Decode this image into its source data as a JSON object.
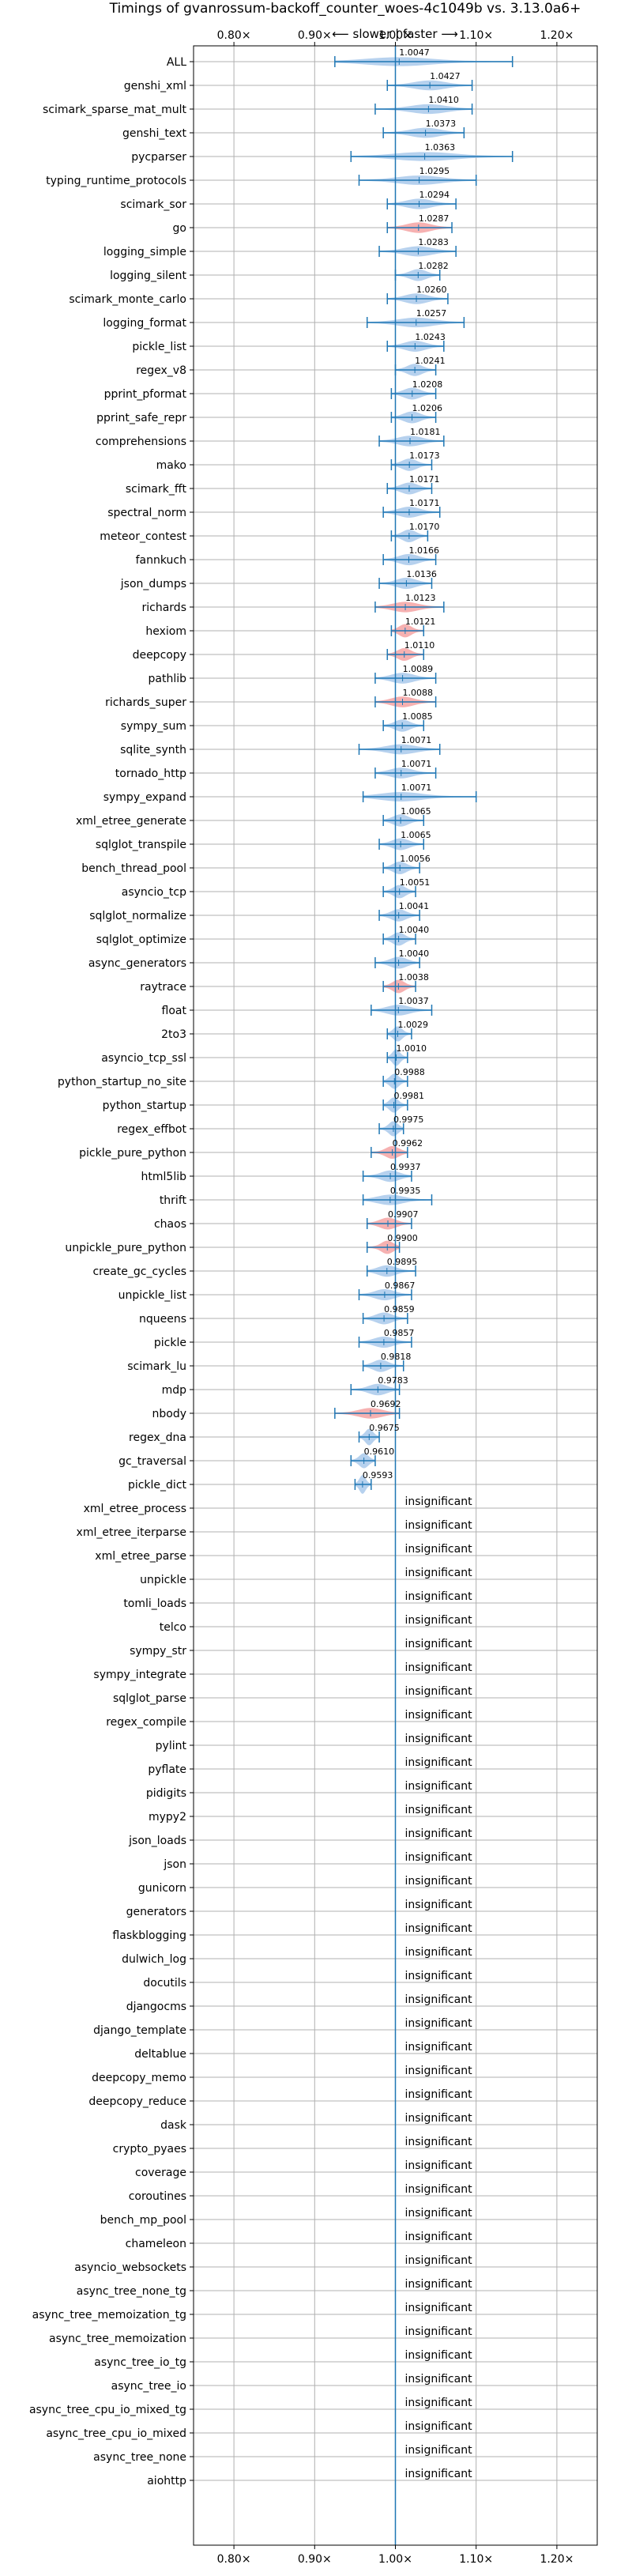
{
  "chart_data": {
    "type": "violin",
    "title": "Timings of gvanrossum-backoff_counter_woes-4c1049b vs. 3.13.0a6+",
    "direction_label": "⟵ slower | faster ⟶",
    "xlim": [
      0.75,
      1.25
    ],
    "xticks": [
      0.8,
      0.9,
      1.0,
      1.1,
      1.2
    ],
    "xtick_labels": [
      "0.80×",
      "0.90×",
      "1.00×",
      "1.10×",
      "1.20×"
    ],
    "reference_line": 1.0,
    "insignificant_label": "insignificant",
    "colors": {
      "faster": "#a9c9eb",
      "slower": "#f4a3a3",
      "errorbar": "#1f77b4",
      "grid": "#b0b0b0",
      "refline": "#1f77b4"
    },
    "benchmarks": [
      {
        "name": "ALL",
        "mean": 1.0047,
        "label": "1.0047",
        "lo": 0.925,
        "hi": 1.145
      },
      {
        "name": "genshi_xml",
        "mean": 1.0427,
        "label": "1.0427",
        "lo": 0.99,
        "hi": 1.095
      },
      {
        "name": "scimark_sparse_mat_mult",
        "mean": 1.041,
        "label": "1.0410",
        "lo": 0.975,
        "hi": 1.095
      },
      {
        "name": "genshi_text",
        "mean": 1.0373,
        "label": "1.0373",
        "lo": 0.985,
        "hi": 1.085
      },
      {
        "name": "pycparser",
        "mean": 1.0363,
        "label": "1.0363",
        "lo": 0.945,
        "hi": 1.145
      },
      {
        "name": "typing_runtime_protocols",
        "mean": 1.0295,
        "label": "1.0295",
        "lo": 0.955,
        "hi": 1.1
      },
      {
        "name": "scimark_sor",
        "mean": 1.0294,
        "label": "1.0294",
        "lo": 0.99,
        "hi": 1.075
      },
      {
        "name": "go",
        "mean": 1.0287,
        "label": "1.0287",
        "lo": 0.99,
        "hi": 1.07,
        "slower": true
      },
      {
        "name": "logging_simple",
        "mean": 1.0283,
        "label": "1.0283",
        "lo": 0.98,
        "hi": 1.075
      },
      {
        "name": "logging_silent",
        "mean": 1.0282,
        "label": "1.0282",
        "lo": 1.0,
        "hi": 1.055
      },
      {
        "name": "scimark_monte_carlo",
        "mean": 1.026,
        "label": "1.0260",
        "lo": 0.99,
        "hi": 1.065
      },
      {
        "name": "logging_format",
        "mean": 1.0257,
        "label": "1.0257",
        "lo": 0.965,
        "hi": 1.085
      },
      {
        "name": "pickle_list",
        "mean": 1.0243,
        "label": "1.0243",
        "lo": 0.99,
        "hi": 1.06
      },
      {
        "name": "regex_v8",
        "mean": 1.0241,
        "label": "1.0241",
        "lo": 1.0,
        "hi": 1.05
      },
      {
        "name": "pprint_pformat",
        "mean": 1.0208,
        "label": "1.0208",
        "lo": 0.995,
        "hi": 1.05
      },
      {
        "name": "pprint_safe_repr",
        "mean": 1.0206,
        "label": "1.0206",
        "lo": 0.995,
        "hi": 1.05
      },
      {
        "name": "comprehensions",
        "mean": 1.0181,
        "label": "1.0181",
        "lo": 0.98,
        "hi": 1.06
      },
      {
        "name": "mako",
        "mean": 1.0173,
        "label": "1.0173",
        "lo": 0.995,
        "hi": 1.045
      },
      {
        "name": "scimark_fft",
        "mean": 1.0171,
        "label": "1.0171",
        "lo": 0.99,
        "hi": 1.045
      },
      {
        "name": "spectral_norm",
        "mean": 1.0171,
        "label": "1.0171",
        "lo": 0.985,
        "hi": 1.055
      },
      {
        "name": "meteor_contest",
        "mean": 1.017,
        "label": "1.0170",
        "lo": 0.995,
        "hi": 1.04
      },
      {
        "name": "fannkuch",
        "mean": 1.0166,
        "label": "1.0166",
        "lo": 0.985,
        "hi": 1.05
      },
      {
        "name": "json_dumps",
        "mean": 1.0136,
        "label": "1.0136",
        "lo": 0.98,
        "hi": 1.045
      },
      {
        "name": "richards",
        "mean": 1.0123,
        "label": "1.0123",
        "lo": 0.975,
        "hi": 1.06,
        "slower": true
      },
      {
        "name": "hexiom",
        "mean": 1.0121,
        "label": "1.0121",
        "lo": 0.995,
        "hi": 1.035,
        "slower": true
      },
      {
        "name": "deepcopy",
        "mean": 1.011,
        "label": "1.0110",
        "lo": 0.99,
        "hi": 1.035,
        "slower": true
      },
      {
        "name": "pathlib",
        "mean": 1.0089,
        "label": "1.0089",
        "lo": 0.975,
        "hi": 1.05
      },
      {
        "name": "richards_super",
        "mean": 1.0088,
        "label": "1.0088",
        "lo": 0.975,
        "hi": 1.05,
        "slower": true
      },
      {
        "name": "sympy_sum",
        "mean": 1.0085,
        "label": "1.0085",
        "lo": 0.985,
        "hi": 1.035
      },
      {
        "name": "sqlite_synth",
        "mean": 1.0071,
        "label": "1.0071",
        "lo": 0.955,
        "hi": 1.055
      },
      {
        "name": "tornado_http",
        "mean": 1.0071,
        "label": "1.0071",
        "lo": 0.975,
        "hi": 1.05
      },
      {
        "name": "sympy_expand",
        "mean": 1.0071,
        "label": "1.0071",
        "lo": 0.96,
        "hi": 1.1
      },
      {
        "name": "xml_etree_generate",
        "mean": 1.0065,
        "label": "1.0065",
        "lo": 0.985,
        "hi": 1.035
      },
      {
        "name": "sqlglot_transpile",
        "mean": 1.0065,
        "label": "1.0065",
        "lo": 0.98,
        "hi": 1.035
      },
      {
        "name": "bench_thread_pool",
        "mean": 1.0056,
        "label": "1.0056",
        "lo": 0.985,
        "hi": 1.03
      },
      {
        "name": "asyncio_tcp",
        "mean": 1.0051,
        "label": "1.0051",
        "lo": 0.985,
        "hi": 1.025
      },
      {
        "name": "sqlglot_normalize",
        "mean": 1.0041,
        "label": "1.0041",
        "lo": 0.98,
        "hi": 1.03
      },
      {
        "name": "sqlglot_optimize",
        "mean": 1.004,
        "label": "1.0040",
        "lo": 0.985,
        "hi": 1.025
      },
      {
        "name": "async_generators",
        "mean": 1.004,
        "label": "1.0040",
        "lo": 0.975,
        "hi": 1.03
      },
      {
        "name": "raytrace",
        "mean": 1.0038,
        "label": "1.0038",
        "lo": 0.985,
        "hi": 1.025,
        "slower": true
      },
      {
        "name": "float",
        "mean": 1.0037,
        "label": "1.0037",
        "lo": 0.97,
        "hi": 1.045
      },
      {
        "name": "2to3",
        "mean": 1.0029,
        "label": "1.0029",
        "lo": 0.99,
        "hi": 1.02
      },
      {
        "name": "asyncio_tcp_ssl",
        "mean": 1.001,
        "label": "1.0010",
        "lo": 0.99,
        "hi": 1.015
      },
      {
        "name": "python_startup_no_site",
        "mean": 0.9988,
        "label": "0.9988",
        "lo": 0.985,
        "hi": 1.015
      },
      {
        "name": "python_startup",
        "mean": 0.9981,
        "label": "0.9981",
        "lo": 0.985,
        "hi": 1.015
      },
      {
        "name": "regex_effbot",
        "mean": 0.9975,
        "label": "0.9975",
        "lo": 0.98,
        "hi": 1.01
      },
      {
        "name": "pickle_pure_python",
        "mean": 0.9962,
        "label": "0.9962",
        "lo": 0.97,
        "hi": 1.015,
        "slower": true
      },
      {
        "name": "html5lib",
        "mean": 0.9937,
        "label": "0.9937",
        "lo": 0.96,
        "hi": 1.02
      },
      {
        "name": "thrift",
        "mean": 0.9935,
        "label": "0.9935",
        "lo": 0.96,
        "hi": 1.045
      },
      {
        "name": "chaos",
        "mean": 0.9907,
        "label": "0.9907",
        "lo": 0.965,
        "hi": 1.02,
        "slower": true
      },
      {
        "name": "unpickle_pure_python",
        "mean": 0.99,
        "label": "0.9900",
        "lo": 0.965,
        "hi": 1.005,
        "slower": true
      },
      {
        "name": "create_gc_cycles",
        "mean": 0.9895,
        "label": "0.9895",
        "lo": 0.965,
        "hi": 1.025
      },
      {
        "name": "unpickle_list",
        "mean": 0.9867,
        "label": "0.9867",
        "lo": 0.955,
        "hi": 1.02
      },
      {
        "name": "nqueens",
        "mean": 0.9859,
        "label": "0.9859",
        "lo": 0.96,
        "hi": 1.015
      },
      {
        "name": "pickle",
        "mean": 0.9857,
        "label": "0.9857",
        "lo": 0.955,
        "hi": 1.02
      },
      {
        "name": "scimark_lu",
        "mean": 0.9818,
        "label": "0.9818",
        "lo": 0.96,
        "hi": 1.01
      },
      {
        "name": "mdp",
        "mean": 0.9783,
        "label": "0.9783",
        "lo": 0.945,
        "hi": 1.005
      },
      {
        "name": "nbody",
        "mean": 0.9692,
        "label": "0.9692",
        "lo": 0.925,
        "hi": 1.005,
        "slower": true
      },
      {
        "name": "regex_dna",
        "mean": 0.9675,
        "label": "0.9675",
        "lo": 0.955,
        "hi": 0.98
      },
      {
        "name": "gc_traversal",
        "mean": 0.961,
        "label": "0.9610",
        "lo": 0.945,
        "hi": 0.975
      },
      {
        "name": "pickle_dict",
        "mean": 0.9593,
        "label": "0.9593",
        "lo": 0.95,
        "hi": 0.97
      },
      {
        "name": "xml_etree_process",
        "insignificant": true
      },
      {
        "name": "xml_etree_iterparse",
        "insignificant": true
      },
      {
        "name": "xml_etree_parse",
        "insignificant": true
      },
      {
        "name": "unpickle",
        "insignificant": true
      },
      {
        "name": "tomli_loads",
        "insignificant": true
      },
      {
        "name": "telco",
        "insignificant": true
      },
      {
        "name": "sympy_str",
        "insignificant": true
      },
      {
        "name": "sympy_integrate",
        "insignificant": true
      },
      {
        "name": "sqlglot_parse",
        "insignificant": true
      },
      {
        "name": "regex_compile",
        "insignificant": true
      },
      {
        "name": "pylint",
        "insignificant": true
      },
      {
        "name": "pyflate",
        "insignificant": true
      },
      {
        "name": "pidigits",
        "insignificant": true
      },
      {
        "name": "mypy2",
        "insignificant": true
      },
      {
        "name": "json_loads",
        "insignificant": true
      },
      {
        "name": "json",
        "insignificant": true
      },
      {
        "name": "gunicorn",
        "insignificant": true
      },
      {
        "name": "generators",
        "insignificant": true
      },
      {
        "name": "flaskblogging",
        "insignificant": true
      },
      {
        "name": "dulwich_log",
        "insignificant": true
      },
      {
        "name": "docutils",
        "insignificant": true
      },
      {
        "name": "djangocms",
        "insignificant": true
      },
      {
        "name": "django_template",
        "insignificant": true
      },
      {
        "name": "deltablue",
        "insignificant": true
      },
      {
        "name": "deepcopy_memo",
        "insignificant": true
      },
      {
        "name": "deepcopy_reduce",
        "insignificant": true
      },
      {
        "name": "dask",
        "insignificant": true
      },
      {
        "name": "crypto_pyaes",
        "insignificant": true
      },
      {
        "name": "coverage",
        "insignificant": true
      },
      {
        "name": "coroutines",
        "insignificant": true
      },
      {
        "name": "bench_mp_pool",
        "insignificant": true
      },
      {
        "name": "chameleon",
        "insignificant": true
      },
      {
        "name": "asyncio_websockets",
        "insignificant": true
      },
      {
        "name": "async_tree_none_tg",
        "insignificant": true
      },
      {
        "name": "async_tree_memoization_tg",
        "insignificant": true
      },
      {
        "name": "async_tree_memoization",
        "insignificant": true
      },
      {
        "name": "async_tree_io_tg",
        "insignificant": true
      },
      {
        "name": "async_tree_io",
        "insignificant": true
      },
      {
        "name": "async_tree_cpu_io_mixed_tg",
        "insignificant": true
      },
      {
        "name": "async_tree_cpu_io_mixed",
        "insignificant": true
      },
      {
        "name": "async_tree_none",
        "insignificant": true
      },
      {
        "name": "aiohttp",
        "insignificant": true
      }
    ]
  }
}
